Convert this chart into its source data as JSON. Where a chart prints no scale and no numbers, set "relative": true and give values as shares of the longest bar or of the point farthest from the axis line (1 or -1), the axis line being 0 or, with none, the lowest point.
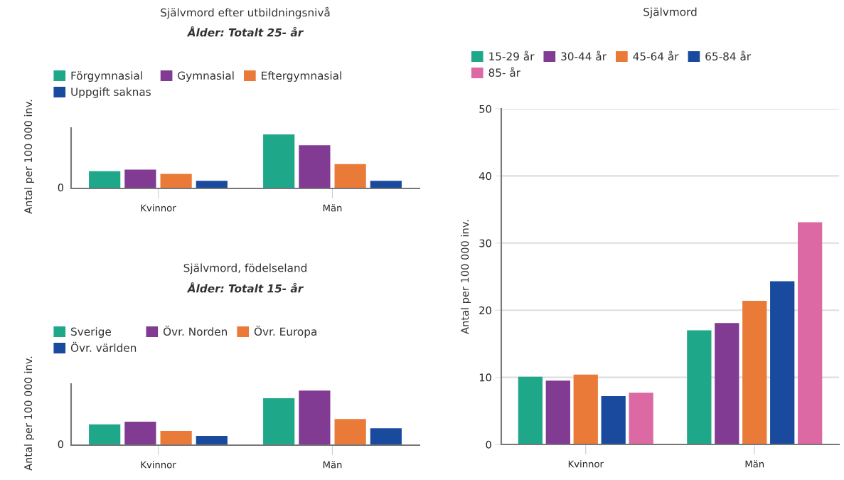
{
  "chart_data": [
    {
      "type": "bar",
      "title": "Självmord efter utbildningsnivå",
      "subtitle": "Ålder: Totalt 25- år",
      "ylabel": "Antal per 100 000 inv.",
      "relative": true,
      "categories": [
        "Kvinnor",
        "Män"
      ],
      "legend": "top",
      "grid": false,
      "annotations": [
        "0"
      ],
      "series": [
        {
          "name": "Förgymnasial",
          "color": "#1fa78a",
          "values": [
            0.32,
            1
          ]
        },
        {
          "name": "Gymnasial",
          "color": "#813b92",
          "values": [
            0.35,
            0.8
          ]
        },
        {
          "name": "Eftergymnasial",
          "color": "#ea7a38",
          "values": [
            0.27,
            0.45
          ]
        },
        {
          "name": "Uppgift saknas",
          "color": "#1a4a9e",
          "values": [
            0.14,
            0.14
          ]
        }
      ]
    },
    {
      "type": "bar",
      "title": "Självmord, födelseland",
      "subtitle": "Ålder: Totalt 15- år",
      "ylabel": "Antal per 100 000 inv.",
      "relative": true,
      "categories": [
        "Kvinnor",
        "Män"
      ],
      "legend": "top",
      "grid": false,
      "annotations": [
        "0"
      ],
      "series": [
        {
          "name": "Sverige",
          "color": "#1fa78a",
          "values": [
            0.38,
            0.86
          ]
        },
        {
          "name": "Övr. Norden",
          "color": "#813b92",
          "values": [
            0.43,
            1
          ]
        },
        {
          "name": "Övr. Europa",
          "color": "#ea7a38",
          "values": [
            0.26,
            0.48
          ]
        },
        {
          "name": "Övr. världen",
          "color": "#1a4a9e",
          "values": [
            0.17,
            0.31
          ]
        }
      ]
    },
    {
      "type": "bar",
      "title": "Självmord",
      "ylabel": "Antal per 100 000 inv.",
      "categories": [
        "Kvinnor",
        "Män"
      ],
      "legend": "top",
      "grid": "y",
      "ylim": [
        0,
        50
      ],
      "yticks": [
        0,
        10,
        20,
        30,
        40,
        50
      ],
      "series": [
        {
          "name": "15-29 år",
          "color": "#1fa78a",
          "values": [
            10.1,
            17.0
          ]
        },
        {
          "name": "30-44 år",
          "color": "#813b92",
          "values": [
            9.5,
            18.1
          ]
        },
        {
          "name": "45-64 år",
          "color": "#ea7a38",
          "values": [
            10.4,
            21.4
          ]
        },
        {
          "name": "65-84 år",
          "color": "#1a4a9e",
          "values": [
            7.2,
            24.3
          ]
        },
        {
          "name": "85- år",
          "color": "#dc69a4",
          "values": [
            7.7,
            33.1
          ]
        }
      ]
    }
  ]
}
